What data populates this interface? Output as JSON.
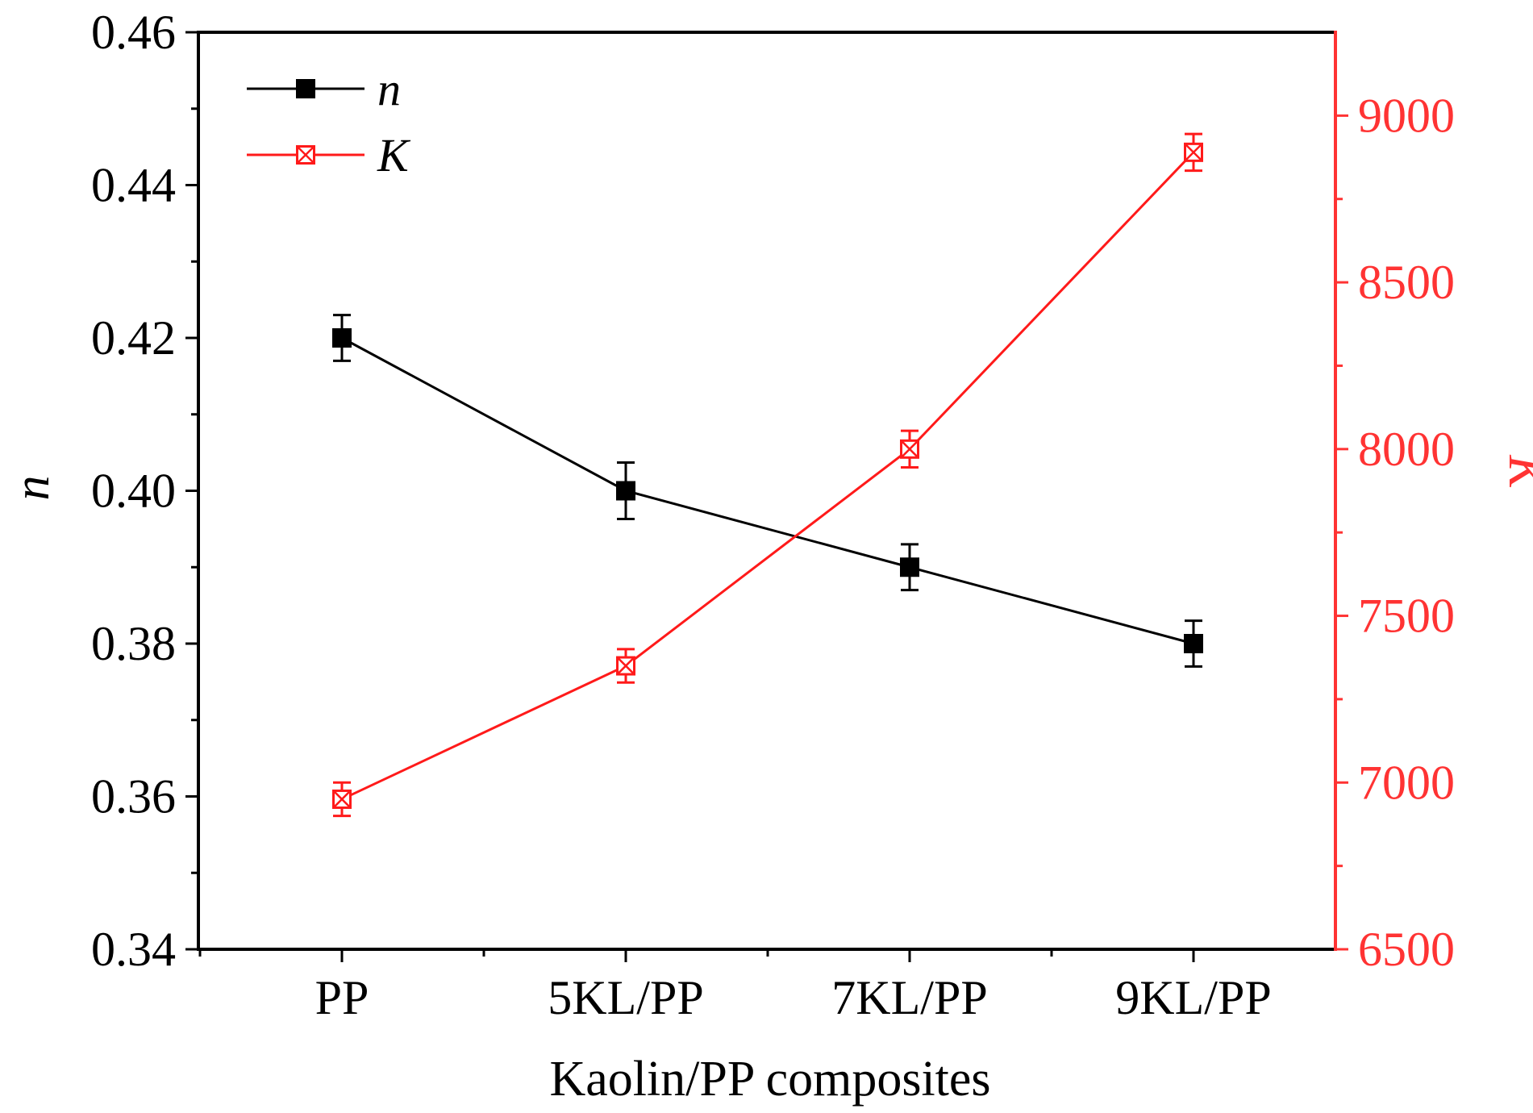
{
  "chart_data": {
    "type": "line",
    "categories": [
      "PP",
      "5KL/PP",
      "7KL/PP",
      "9KL/PP"
    ],
    "xlabel": "Kaolin/PP composites",
    "y_left": {
      "label": "n",
      "range": [
        0.34,
        0.46
      ],
      "ticks": [
        "0.34",
        "0.36",
        "0.38",
        "0.40",
        "0.42",
        "0.44",
        "0.46"
      ],
      "tick_values": [
        0.34,
        0.36,
        0.38,
        0.4,
        0.42,
        0.44,
        0.46
      ],
      "color": "#000000"
    },
    "y_right": {
      "label": "K",
      "range": [
        6500,
        9250
      ],
      "ticks": [
        "6500",
        "7000",
        "7500",
        "8000",
        "8500",
        "9000"
      ],
      "tick_values": [
        6500,
        7000,
        7500,
        8000,
        8500,
        9000
      ],
      "color": "#ff3333"
    },
    "series": [
      {
        "name": "n",
        "axis": "left",
        "color": "#000000",
        "marker": "filled-square",
        "values": [
          0.42,
          0.4,
          0.39,
          0.38
        ],
        "errors": [
          0.003,
          0.0037,
          0.003,
          0.003
        ]
      },
      {
        "name": "K",
        "axis": "right",
        "color": "#ff1a1a",
        "marker": "crossed-square",
        "values": [
          6950,
          7350,
          8000,
          8890
        ],
        "errors": [
          50,
          50,
          55,
          55
        ]
      }
    ],
    "legend": "top-left"
  }
}
